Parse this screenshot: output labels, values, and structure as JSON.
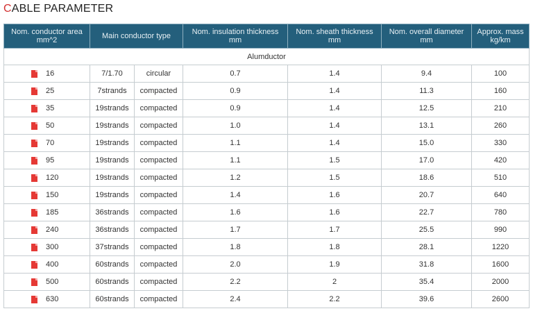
{
  "title_first_letter": "C",
  "title_rest": "ABLE PARAMETER",
  "headers": {
    "area": [
      "Nom. conductor area",
      "mm^2"
    ],
    "type": "Main conductor type",
    "insulation": [
      "Nom. insulation thickness",
      "mm"
    ],
    "sheath": [
      "Nom. sheath thickness",
      "mm"
    ],
    "diameter": [
      "Nom. overall diameter",
      "mm"
    ],
    "mass": [
      "Approx. mass",
      "kg/km"
    ]
  },
  "group_label": "Alumductor",
  "colors": {
    "header_bg": "#245f7c",
    "title_accent": "#d32f2f",
    "pdf_icon": "#e53935"
  },
  "rows": [
    {
      "area": "16",
      "strands": "7/1.70",
      "shape": "circular",
      "insulation": "0.7",
      "sheath": "1.4",
      "diameter": "9.4",
      "mass": "100"
    },
    {
      "area": "25",
      "strands": "7strands",
      "shape": "compacted",
      "insulation": "0.9",
      "sheath": "1.4",
      "diameter": "11.3",
      "mass": "160"
    },
    {
      "area": "35",
      "strands": "19strands",
      "shape": "compacted",
      "insulation": "0.9",
      "sheath": "1.4",
      "diameter": "12.5",
      "mass": "210"
    },
    {
      "area": "50",
      "strands": "19strands",
      "shape": "compacted",
      "insulation": "1.0",
      "sheath": "1.4",
      "diameter": "13.1",
      "mass": "260"
    },
    {
      "area": "70",
      "strands": "19strands",
      "shape": "compacted",
      "insulation": "1.1",
      "sheath": "1.4",
      "diameter": "15.0",
      "mass": "330"
    },
    {
      "area": "95",
      "strands": "19strands",
      "shape": "compacted",
      "insulation": "1.1",
      "sheath": "1.5",
      "diameter": "17.0",
      "mass": "420"
    },
    {
      "area": "120",
      "strands": "19strands",
      "shape": "compacted",
      "insulation": "1.2",
      "sheath": "1.5",
      "diameter": "18.6",
      "mass": "510"
    },
    {
      "area": "150",
      "strands": "19strands",
      "shape": "compacted",
      "insulation": "1.4",
      "sheath": "1.6",
      "diameter": "20.7",
      "mass": "640"
    },
    {
      "area": "185",
      "strands": "36strands",
      "shape": "compacted",
      "insulation": "1.6",
      "sheath": "1.6",
      "diameter": "22.7",
      "mass": "780"
    },
    {
      "area": "240",
      "strands": "36strands",
      "shape": "compacted",
      "insulation": "1.7",
      "sheath": "1.7",
      "diameter": "25.5",
      "mass": "990"
    },
    {
      "area": "300",
      "strands": "37strands",
      "shape": "compacted",
      "insulation": "1.8",
      "sheath": "1.8",
      "diameter": "28.1",
      "mass": "1220"
    },
    {
      "area": "400",
      "strands": "60strands",
      "shape": "compacted",
      "insulation": "2.0",
      "sheath": "1.9",
      "diameter": "31.8",
      "mass": "1600"
    },
    {
      "area": "500",
      "strands": "60strands",
      "shape": "compacted",
      "insulation": "2.2",
      "sheath": "2",
      "diameter": "35.4",
      "mass": "2000"
    },
    {
      "area": "630",
      "strands": "60strands",
      "shape": "compacted",
      "insulation": "2.4",
      "sheath": "2.2",
      "diameter": "39.6",
      "mass": "2600"
    }
  ]
}
